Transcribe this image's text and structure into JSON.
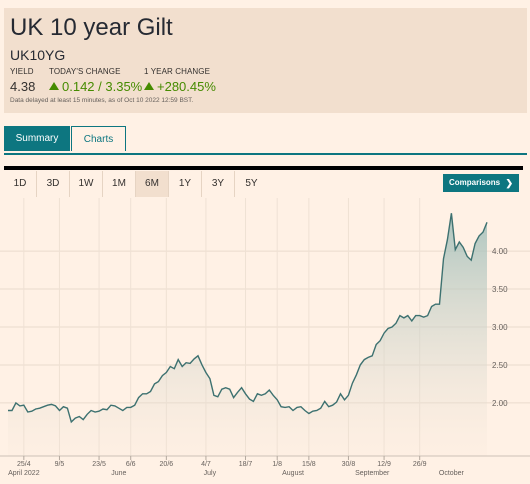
{
  "header": {
    "title": "UK 10 year Gilt",
    "symbol": "UK10YG",
    "yield_label": "YIELD",
    "yield_value": "4.38",
    "today_label": "TODAY'S CHANGE",
    "today_value": "0.142 / 3.35%",
    "year_label": "1 YEAR CHANGE",
    "year_value": "+280.45%",
    "disclaimer": "Data delayed at least 15 minutes, as of Oct 10 2022 12:59 BST.",
    "positive_color": "#458b00"
  },
  "tabs": [
    {
      "label": "Summary",
      "active": true
    },
    {
      "label": "Charts",
      "active": false
    }
  ],
  "ranges": [
    {
      "label": "1D"
    },
    {
      "label": "3D"
    },
    {
      "label": "1W"
    },
    {
      "label": "1M"
    },
    {
      "label": "6M",
      "active": true
    },
    {
      "label": "1Y"
    },
    {
      "label": "3Y"
    },
    {
      "label": "5Y"
    }
  ],
  "compare_button": "Comparisons",
  "compare_chevron": "❯",
  "chart_data": {
    "type": "area",
    "ylim": [
      1.3,
      4.7
    ],
    "y_ticks": [
      "4.00",
      "3.50",
      "3.00",
      "2.50",
      "2.00"
    ],
    "y_tick_values": [
      4.0,
      3.5,
      3.0,
      2.5,
      2.0
    ],
    "x_tick_labels": [
      "25/4",
      "9/5",
      "23/5",
      "6/6",
      "20/6",
      "4/7",
      "18/7",
      "1/8",
      "15/8",
      "30/8",
      "12/9",
      "26/9"
    ],
    "x_tick_index": [
      4,
      13,
      23,
      31,
      40,
      50,
      60,
      68,
      76,
      86,
      95,
      104
    ],
    "x_group_labels": [
      {
        "label": "April 2022",
        "index": 4
      },
      {
        "label": "June",
        "index": 28
      },
      {
        "label": "July",
        "index": 51
      },
      {
        "label": "August",
        "index": 72
      },
      {
        "label": "September",
        "index": 92
      },
      {
        "label": "October",
        "index": 112
      }
    ],
    "grid": true,
    "line_color": "#3d7170",
    "fill_color": "#9ebdb8",
    "values": [
      1.9,
      1.9,
      2.0,
      1.96,
      1.97,
      1.88,
      1.89,
      1.92,
      1.93,
      1.95,
      1.97,
      1.98,
      1.96,
      1.9,
      1.95,
      1.93,
      1.75,
      1.8,
      1.82,
      1.78,
      1.85,
      1.9,
      1.88,
      1.89,
      1.92,
      1.91,
      1.97,
      1.96,
      1.93,
      1.9,
      1.94,
      1.94,
      1.97,
      2.07,
      2.12,
      2.12,
      2.15,
      2.25,
      2.28,
      2.36,
      2.4,
      2.48,
      2.45,
      2.57,
      2.48,
      2.53,
      2.52,
      2.58,
      2.62,
      2.5,
      2.4,
      2.32,
      2.1,
      2.08,
      2.18,
      2.2,
      2.18,
      2.07,
      2.14,
      2.2,
      2.12,
      2.05,
      2.02,
      2.12,
      2.1,
      2.12,
      2.17,
      2.1,
      2.04,
      1.95,
      1.94,
      1.95,
      1.9,
      1.94,
      1.95,
      1.9,
      1.86,
      1.89,
      1.9,
      1.93,
      2.02,
      1.95,
      1.97,
      2.01,
      2.12,
      2.04,
      2.1,
      2.26,
      2.37,
      2.5,
      2.57,
      2.6,
      2.62,
      2.77,
      2.82,
      2.92,
      2.98,
      3.0,
      3.05,
      3.15,
      3.12,
      3.15,
      3.08,
      3.15,
      3.15,
      3.13,
      3.15,
      3.27,
      3.3,
      3.3,
      3.9,
      4.15,
      4.5,
      4.02,
      4.12,
      4.05,
      3.93,
      3.88,
      4.1,
      4.2,
      4.25,
      4.38
    ]
  }
}
